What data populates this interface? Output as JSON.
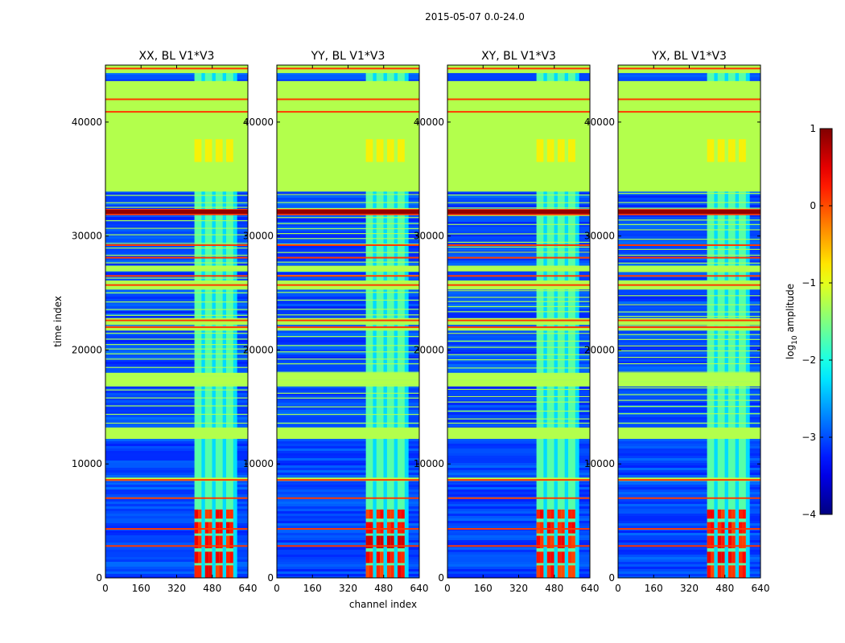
{
  "figure": {
    "suptitle": "2015-05-07 0.0-24.0"
  },
  "chart_data": {
    "type": "heatmap",
    "shared": {
      "xlabel": "channel index",
      "ylabel": "time index",
      "x_range": [
        0,
        640
      ],
      "y_range": [
        0,
        45000
      ],
      "x_ticks": [
        0,
        160,
        320,
        480,
        640
      ],
      "y_ticks": [
        0,
        10000,
        20000,
        30000,
        40000
      ],
      "colorbar": {
        "label_main": "log",
        "label_sub": "10",
        "label_tail": " amplitude",
        "range": [
          -4,
          1
        ],
        "ticks": [
          -4,
          -3,
          -2,
          -1,
          0,
          1
        ],
        "tick_labels": [
          "−4",
          "−3",
          "−2",
          "−1",
          "0",
          "1"
        ],
        "colormap": "jet"
      }
    },
    "panels": [
      {
        "title": "XX, BL V1*V3",
        "pol": "XX"
      },
      {
        "title": "YY, BL V1*V3",
        "pol": "YY"
      },
      {
        "title": "XY, BL V1*V3",
        "pol": "XY"
      },
      {
        "title": "YX, BL V1*V3",
        "pol": "YX"
      }
    ],
    "flagged_time_bands": [
      [
        44300,
        45000
      ],
      [
        33900,
        43600
      ],
      [
        26900,
        27400
      ],
      [
        25300,
        26100
      ],
      [
        22200,
        22800
      ],
      [
        21700,
        22000
      ],
      [
        16800,
        18000
      ],
      [
        12200,
        13200
      ],
      [
        8500,
        8800
      ]
    ],
    "strong_time_lines": [
      44700,
      42000,
      40900,
      32300,
      31900,
      29200,
      28100,
      26500,
      25700,
      22600,
      22000,
      8600,
      7000,
      4300,
      2800
    ],
    "dense_channel_region": [
      400,
      590
    ],
    "high_amplitude_time_range": [
      0,
      6000
    ]
  }
}
